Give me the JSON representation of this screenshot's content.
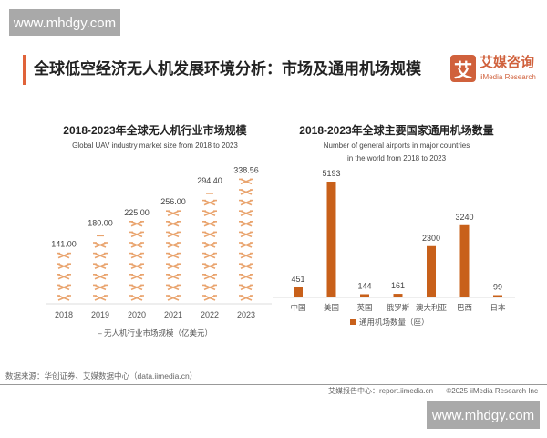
{
  "watermark": "www.mhdgy.com",
  "header": {
    "title": "全球低空经济无人机发展环境分析：市场及通用机场规模",
    "logo_mark": "艾",
    "logo_cn": "艾媒咨询",
    "logo_en": "iiMedia Research"
  },
  "chart_data": [
    {
      "type": "bar",
      "style": "pictograph",
      "icon": "drone-icon",
      "title": "2018-2023年全球无人机行业市场规模",
      "subtitle": "Global UAV industry market size from 2018 to 2023",
      "categories": [
        "2018",
        "2019",
        "2020",
        "2021",
        "2022",
        "2023"
      ],
      "series": [
        {
          "name": "无人机行业市场规模（亿美元）",
          "values": [
            141.0,
            180.0,
            225.0,
            256.0,
            294.4,
            338.56
          ]
        }
      ],
      "data_labels": [
        "141.00",
        "180.00",
        "225.00",
        "256.00",
        "294.40",
        "338.56"
      ],
      "legend": "bottom",
      "grid": false,
      "color": "#e9a46e"
    },
    {
      "type": "bar",
      "title": "2018-2023年全球主要国家通用机场数量",
      "subtitle_lines": [
        "Number of general airports in major countries",
        "in the world from 2018 to 2023"
      ],
      "categories": [
        "中国",
        "美国",
        "英国",
        "俄罗斯",
        "澳大利亚",
        "巴西",
        "日本"
      ],
      "series": [
        {
          "name": "通用机场数量（座）",
          "values": [
            451,
            5193,
            144,
            161,
            2300,
            3240,
            99
          ]
        }
      ],
      "legend": "bottom",
      "grid": false,
      "color": "#c8601a"
    }
  ],
  "footer": {
    "source": "数据来源：华创证券、艾媒数据中心（data.iimedia.cn）",
    "report_center": "艾媒报告中心：report.iimedia.cn",
    "copyright": "©2025  iiMedia Research Inc"
  }
}
